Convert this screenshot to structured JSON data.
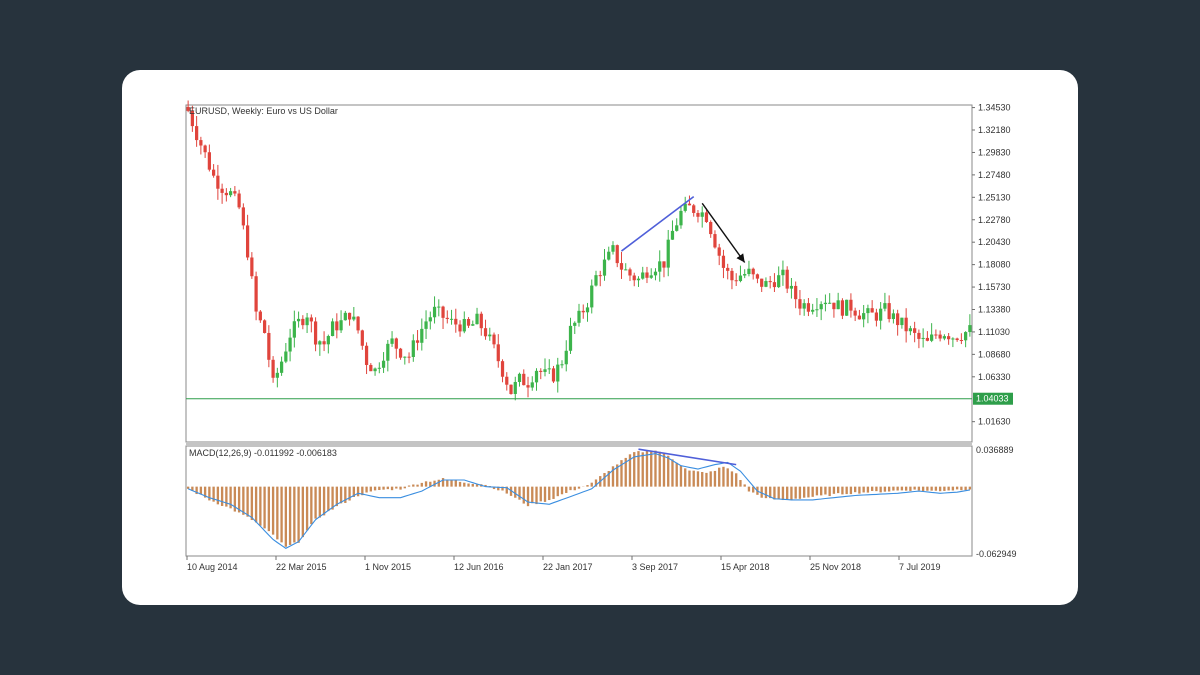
{
  "chart_data": [
    {
      "type": "candlestick",
      "title": "EURUSD, Weekly:  Euro vs US Dollar",
      "x_ticks": [
        "10 Aug 2014",
        "22 Mar 2015",
        "1 Nov 2015",
        "12 Jun 2016",
        "22 Jan 2017",
        "3 Sep 2017",
        "15 Apr 2018",
        "25 Nov 2018",
        "7 Jul 2019"
      ],
      "y_ticks": [
        "1.34530",
        "1.32180",
        "1.29830",
        "1.27480",
        "1.25130",
        "1.22780",
        "1.20430",
        "1.18080",
        "1.15730",
        "1.13380",
        "1.11030",
        "1.08680",
        "1.06330",
        "1.01630"
      ],
      "ylim": [
        0.995,
        1.348
      ],
      "current_price_label": "1.04033",
      "current_price_value": 1.04033,
      "close_path": [
        [
          0,
          1.342
        ],
        [
          2,
          1.318
        ],
        [
          4,
          1.296
        ],
        [
          6,
          1.273
        ],
        [
          8,
          1.262
        ],
        [
          10,
          1.255
        ],
        [
          12,
          1.24
        ],
        [
          14,
          1.195
        ],
        [
          16,
          1.13
        ],
        [
          18,
          1.11
        ],
        [
          20,
          1.055
        ],
        [
          22,
          1.08
        ],
        [
          24,
          1.108
        ],
        [
          26,
          1.12
        ],
        [
          28,
          1.13
        ],
        [
          30,
          1.105
        ],
        [
          32,
          1.098
        ],
        [
          34,
          1.115
        ],
        [
          36,
          1.12
        ],
        [
          38,
          1.13
        ],
        [
          40,
          1.112
        ],
        [
          42,
          1.08
        ],
        [
          44,
          1.07
        ],
        [
          46,
          1.088
        ],
        [
          48,
          1.1
        ],
        [
          50,
          1.09
        ],
        [
          52,
          1.085
        ],
        [
          54,
          1.105
        ],
        [
          56,
          1.122
        ],
        [
          58,
          1.132
        ],
        [
          60,
          1.126
        ],
        [
          62,
          1.12
        ],
        [
          64,
          1.118
        ],
        [
          66,
          1.114
        ],
        [
          68,
          1.122
        ],
        [
          70,
          1.11
        ],
        [
          72,
          1.092
        ],
        [
          74,
          1.07
        ],
        [
          76,
          1.048
        ],
        [
          78,
          1.06
        ],
        [
          80,
          1.058
        ],
        [
          82,
          1.072
        ],
        [
          84,
          1.065
        ],
        [
          86,
          1.065
        ],
        [
          88,
          1.08
        ],
        [
          90,
          1.112
        ],
        [
          92,
          1.125
        ],
        [
          94,
          1.142
        ],
        [
          96,
          1.168
        ],
        [
          98,
          1.182
        ],
        [
          100,
          1.195
        ],
        [
          102,
          1.178
        ],
        [
          104,
          1.17
        ],
        [
          106,
          1.165
        ],
        [
          108,
          1.175
        ],
        [
          110,
          1.18
        ],
        [
          112,
          1.183
        ],
        [
          114,
          1.215
        ],
        [
          116,
          1.235
        ],
        [
          118,
          1.24
        ],
        [
          120,
          1.238
        ],
        [
          122,
          1.232
        ],
        [
          124,
          1.205
        ],
        [
          126,
          1.178
        ],
        [
          128,
          1.165
        ],
        [
          130,
          1.17
        ],
        [
          132,
          1.172
        ],
        [
          134,
          1.162
        ],
        [
          136,
          1.16
        ],
        [
          138,
          1.165
        ],
        [
          140,
          1.168
        ],
        [
          142,
          1.152
        ],
        [
          144,
          1.14
        ],
        [
          146,
          1.138
        ],
        [
          148,
          1.142
        ],
        [
          150,
          1.145
        ],
        [
          152,
          1.14
        ],
        [
          154,
          1.135
        ],
        [
          156,
          1.137
        ],
        [
          158,
          1.13
        ],
        [
          160,
          1.128
        ],
        [
          162,
          1.128
        ],
        [
          164,
          1.133
        ],
        [
          166,
          1.125
        ],
        [
          168,
          1.118
        ],
        [
          170,
          1.11
        ],
        [
          172,
          1.102
        ],
        [
          174,
          1.098
        ],
        [
          176,
          1.108
        ],
        [
          178,
          1.11
        ],
        [
          180,
          1.106
        ],
        [
          182,
          1.108
        ],
        [
          184,
          1.112
        ]
      ],
      "trendline_up": {
        "from": [
          1.195
        ],
        "to": [
          1.252
        ]
      },
      "arrow_down": {
        "from": [
          1.245
        ],
        "to": [
          1.183
        ]
      }
    },
    {
      "type": "bar+line",
      "title": "MACD(12,26,9) -0.011992 -0.006183",
      "y_ticks": [
        "0.036889",
        "-0.062949"
      ],
      "ylim": [
        -0.062949,
        0.036889
      ],
      "histogram_path": [
        [
          0,
          -0.002
        ],
        [
          5,
          -0.012
        ],
        [
          10,
          -0.02
        ],
        [
          15,
          -0.03
        ],
        [
          20,
          -0.044
        ],
        [
          23,
          -0.055
        ],
        [
          26,
          -0.05
        ],
        [
          30,
          -0.03
        ],
        [
          35,
          -0.018
        ],
        [
          40,
          -0.008
        ],
        [
          45,
          -0.003
        ],
        [
          50,
          -0.002
        ],
        [
          55,
          0.004
        ],
        [
          60,
          0.007
        ],
        [
          65,
          0.004
        ],
        [
          70,
          0.002
        ],
        [
          75,
          -0.006
        ],
        [
          80,
          -0.017
        ],
        [
          85,
          -0.012
        ],
        [
          90,
          -0.004
        ],
        [
          95,
          0.003
        ],
        [
          100,
          0.018
        ],
        [
          105,
          0.031
        ],
        [
          110,
          0.033
        ],
        [
          112,
          0.03
        ],
        [
          115,
          0.022
        ],
        [
          118,
          0.015
        ],
        [
          122,
          0.012
        ],
        [
          126,
          0.018
        ],
        [
          129,
          0.012
        ],
        [
          132,
          -0.004
        ],
        [
          136,
          -0.011
        ],
        [
          140,
          -0.012
        ],
        [
          145,
          -0.01
        ],
        [
          150,
          -0.008
        ],
        [
          155,
          -0.006
        ],
        [
          160,
          -0.005
        ],
        [
          165,
          -0.004
        ],
        [
          170,
          -0.003
        ],
        [
          175,
          -0.004
        ],
        [
          180,
          -0.003
        ],
        [
          184,
          -0.002
        ]
      ],
      "signal_path": [
        [
          0,
          -0.002
        ],
        [
          5,
          -0.01
        ],
        [
          10,
          -0.016
        ],
        [
          15,
          -0.028
        ],
        [
          20,
          -0.048
        ],
        [
          23,
          -0.056
        ],
        [
          26,
          -0.05
        ],
        [
          30,
          -0.03
        ],
        [
          35,
          -0.016
        ],
        [
          40,
          -0.006
        ],
        [
          45,
          -0.01
        ],
        [
          50,
          -0.01
        ],
        [
          55,
          -0.004
        ],
        [
          60,
          0.006
        ],
        [
          65,
          0.006
        ],
        [
          70,
          0.0
        ],
        [
          75,
          -0.001
        ],
        [
          80,
          -0.014
        ],
        [
          85,
          -0.016
        ],
        [
          90,
          -0.009
        ],
        [
          95,
          -0.002
        ],
        [
          100,
          0.015
        ],
        [
          105,
          0.027
        ],
        [
          110,
          0.03
        ],
        [
          113,
          0.026
        ],
        [
          116,
          0.019
        ],
        [
          120,
          0.016
        ],
        [
          124,
          0.02
        ],
        [
          127,
          0.022
        ],
        [
          130,
          0.014
        ],
        [
          134,
          -0.004
        ],
        [
          138,
          -0.011
        ],
        [
          142,
          -0.012
        ],
        [
          147,
          -0.012
        ],
        [
          152,
          -0.01
        ],
        [
          157,
          -0.008
        ],
        [
          162,
          -0.007
        ],
        [
          167,
          -0.006
        ],
        [
          172,
          -0.004
        ],
        [
          177,
          -0.006
        ],
        [
          181,
          -0.005
        ],
        [
          184,
          -0.003
        ]
      ],
      "divergence_line": {
        "from": [
          0.034
        ],
        "to": [
          0.02
        ]
      }
    }
  ],
  "colors": {
    "bull": "#3cb44b",
    "bear": "#e0443c",
    "hist": "#c98a56",
    "signal": "#3a8ee0",
    "trend": "#4f5fd9",
    "arrow": "#111111",
    "priceline": "#2e9e4a",
    "axis": "#6f6f6f"
  }
}
